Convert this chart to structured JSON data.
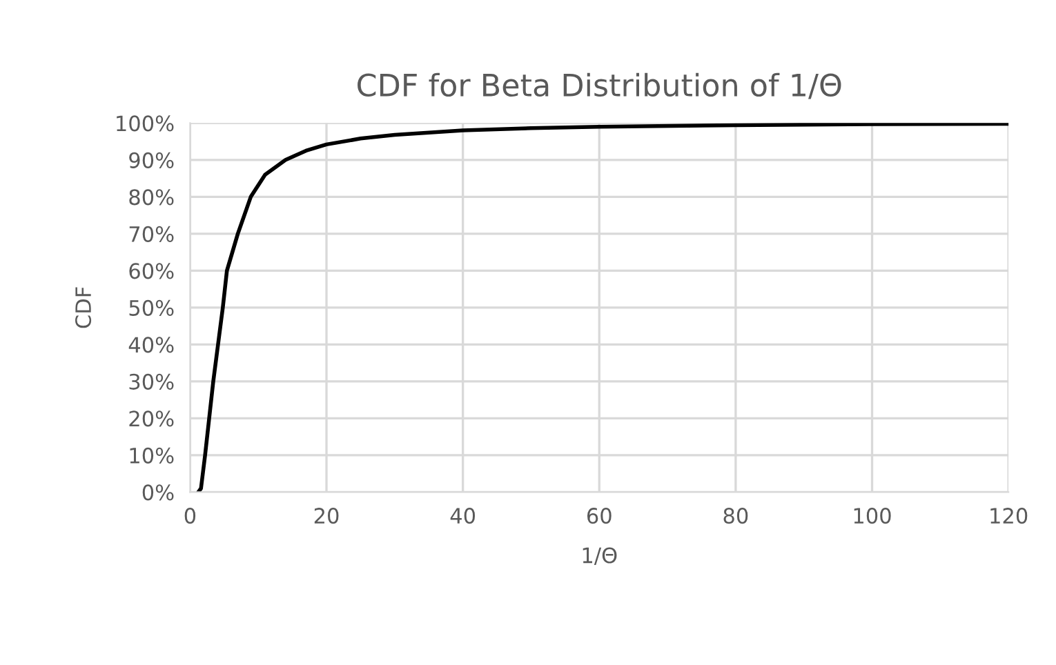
{
  "chart_data": {
    "type": "line",
    "title": "CDF for Beta Distribution of 1/Θ",
    "xlabel": "1/Θ",
    "ylabel": "CDF",
    "series": [
      {
        "color": "#000000",
        "x": [
          1.2,
          1.6,
          2.2,
          2.8,
          3.4,
          4.1,
          4.8,
          5.4,
          7.0,
          8.9,
          11,
          14,
          17,
          20,
          25,
          30,
          40,
          50,
          60,
          80,
          100,
          120
        ],
        "values": [
          0,
          0.01,
          0.1,
          0.2,
          0.3,
          0.4,
          0.5,
          0.6,
          0.7,
          0.8,
          0.86,
          0.9,
          0.925,
          0.942,
          0.958,
          0.968,
          0.98,
          0.986,
          0.99,
          0.994,
          0.997,
          0.998
        ]
      }
    ],
    "xlim": [
      0,
      120
    ],
    "xticks": [
      0,
      20,
      40,
      60,
      80,
      100,
      120
    ],
    "ylim": [
      0,
      1
    ],
    "yticks": [
      {
        "value": 0,
        "label": "0%"
      },
      {
        "value": 0.1,
        "label": "10%"
      },
      {
        "value": 0.2,
        "label": "20%"
      },
      {
        "value": 0.3,
        "label": "30%"
      },
      {
        "value": 0.4,
        "label": "40%"
      },
      {
        "value": 0.5,
        "label": "50%"
      },
      {
        "value": 0.6,
        "label": "60%"
      },
      {
        "value": 0.7,
        "label": "70%"
      },
      {
        "value": 0.8,
        "label": "80%"
      },
      {
        "value": 0.9,
        "label": "90%"
      },
      {
        "value": 1,
        "label": "100%"
      }
    ],
    "grid": true,
    "marker": "none",
    "line_style": "solid"
  }
}
